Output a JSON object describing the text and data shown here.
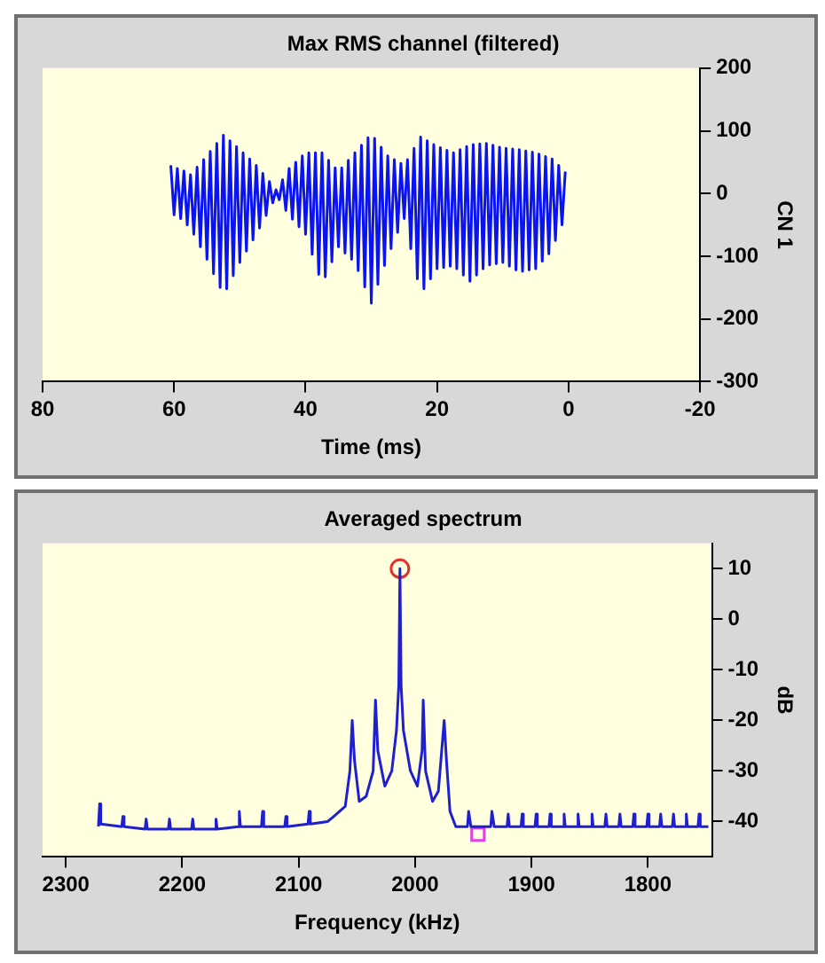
{
  "chart_data": [
    {
      "type": "line",
      "title": "Max RMS channel (filtered)",
      "xlabel": "Time (ms)",
      "ylabel": "CN 1",
      "xlim": [
        80,
        -20
      ],
      "xticks": [
        80,
        60,
        40,
        20,
        0,
        -20
      ],
      "ylim": [
        -300,
        200
      ],
      "yticks": [
        200,
        100,
        0,
        -100,
        -200,
        -300
      ],
      "grid": false,
      "legend": false,
      "marker": "none",
      "series": [
        {
          "color": "#0a14f0",
          "x": [
            60.5,
            60,
            59.5,
            59,
            58.5,
            58,
            57.5,
            57,
            56.5,
            56,
            55.5,
            55,
            54.5,
            54,
            53.5,
            53,
            52.5,
            52,
            51.5,
            51,
            50.5,
            50,
            49.5,
            49,
            48.5,
            48,
            47.5,
            47,
            46.5,
            46,
            45.5,
            45,
            44.5,
            44,
            43.5,
            43,
            42.5,
            42,
            41.5,
            41,
            40.5,
            40,
            39.5,
            39,
            38.5,
            38,
            37.5,
            37,
            36.5,
            36,
            35.5,
            35,
            34.5,
            34,
            33.5,
            33,
            32.5,
            32,
            31.5,
            31,
            30.5,
            30,
            29.5,
            29,
            28.5,
            28,
            27.5,
            27,
            26.5,
            26,
            25.5,
            25,
            24.5,
            24,
            23.5,
            23,
            22.5,
            22,
            21.5,
            21,
            20.5,
            20,
            19.5,
            19,
            18.5,
            18,
            17.5,
            17,
            16.5,
            16,
            15.5,
            15,
            14.5,
            14,
            13.5,
            13,
            12.5,
            12,
            11.5,
            11,
            10.5,
            10,
            9.5,
            9,
            8.5,
            8,
            7.5,
            7,
            6.5,
            6,
            5.5,
            5,
            4.5,
            4,
            3.5,
            3,
            2.5,
            2,
            1.5,
            1,
            0.5
          ],
          "values": [
            45,
            -34,
            40,
            -40,
            36,
            -50,
            30,
            -65,
            42,
            -85,
            54,
            -105,
            67,
            -128,
            80,
            -150,
            93,
            -152,
            84,
            -131,
            75,
            -110,
            65,
            -92,
            55,
            -74,
            45,
            -55,
            32,
            -35,
            19,
            -15,
            6,
            -10,
            22,
            -27,
            40,
            -41,
            50,
            -53,
            60,
            -65,
            65,
            -97,
            65,
            -129,
            65,
            -133,
            53,
            -109,
            41,
            -85,
            41,
            -95,
            53,
            -105,
            65,
            -123,
            77,
            -149,
            89,
            -175,
            88,
            -145,
            74,
            -115,
            60,
            -88,
            54,
            -62,
            48,
            -40,
            54,
            -88,
            72,
            -136,
            90,
            -152,
            84,
            -136,
            78,
            -120,
            73,
            -118,
            69,
            -116,
            65,
            -120,
            70,
            -130,
            75,
            -140,
            78,
            -130,
            79,
            -120,
            80,
            -114,
            77,
            -112,
            74,
            -110,
            72,
            -116,
            71,
            -122,
            70,
            -124,
            68,
            -122,
            66,
            -120,
            63,
            -108,
            59,
            -96,
            55,
            -75,
            45,
            -50,
            35
          ]
        }
      ]
    },
    {
      "type": "line",
      "title": "Averaged spectrum",
      "xlabel": "Frequency (kHz)",
      "ylabel": "dB",
      "xlim": [
        2320,
        1745
      ],
      "xticks": [
        2300,
        2200,
        2100,
        2000,
        1900,
        1800
      ],
      "ylim": [
        -47,
        15
      ],
      "yticks": [
        10,
        0,
        -10,
        -20,
        -30,
        -40
      ],
      "grid": false,
      "legend": false,
      "marker": "none",
      "series": [
        {
          "color": "#1f1fd0",
          "x": [
            2272,
            2271,
            2270,
            2252,
            2251,
            2250,
            2232,
            2231,
            2230,
            2212,
            2211,
            2210,
            2192,
            2191,
            2190,
            2172,
            2171,
            2170,
            2152,
            2151,
            2150,
            2132,
            2131,
            2130,
            2112,
            2111,
            2110,
            2092,
            2091,
            2090,
            2075,
            2070,
            2060,
            2056,
            2054,
            2052,
            2048,
            2042,
            2036,
            2034,
            2032,
            2026,
            2020,
            2016,
            2014,
            2013,
            2012,
            2010,
            2004,
            1998,
            1994,
            1993,
            1991,
            1985,
            1980,
            1975,
            1973,
            1970,
            1965,
            1955,
            1954,
            1952,
            1935,
            1934,
            1932,
            1921,
            1920,
            1919,
            1909,
            1908,
            1907,
            1897,
            1896,
            1895,
            1885,
            1884,
            1883,
            1873,
            1872,
            1871,
            1861,
            1860,
            1859,
            1849,
            1848,
            1847,
            1837,
            1836,
            1835,
            1825,
            1824,
            1823,
            1813,
            1812,
            1811,
            1801,
            1800,
            1799,
            1790,
            1789,
            1788,
            1779,
            1778,
            1777,
            1768,
            1767,
            1766,
            1757,
            1756,
            1755,
            1748
          ],
          "values": [
            -41,
            -36.5,
            -40.5,
            -41,
            -39,
            -41,
            -41.5,
            -39.5,
            -41.5,
            -41.5,
            -39.5,
            -41.5,
            -41.5,
            -39.5,
            -41.5,
            -41.5,
            -39.5,
            -41.5,
            -41,
            -38,
            -41,
            -41,
            -38,
            -41,
            -41,
            -39,
            -41,
            -40.5,
            -38,
            -40.5,
            -40,
            -39,
            -37,
            -30,
            -20,
            -28,
            -36,
            -35,
            -30,
            -16,
            -26,
            -33,
            -30,
            -22,
            -13,
            10,
            -13,
            -22,
            -30,
            -33,
            -26,
            -16,
            -30,
            -36,
            -34,
            -20,
            -28,
            -38,
            -41,
            -41,
            -38,
            -41,
            -41,
            -38,
            -41,
            -41,
            -38.5,
            -41,
            -41,
            -38.5,
            -41,
            -41,
            -38.5,
            -41,
            -41,
            -38.5,
            -41,
            -41,
            -38.5,
            -41,
            -41,
            -38.5,
            -41,
            -41,
            -38.5,
            -41,
            -41,
            -38.5,
            -41,
            -41,
            -38.5,
            -41,
            -41,
            -38.5,
            -41,
            -41,
            -38.5,
            -41,
            -41,
            -38.5,
            -41,
            -41,
            -38.5,
            -41,
            -41,
            -38.5,
            -41,
            -41,
            -38.5,
            -41,
            -41
          ]
        },
        {
          "type": "scatter",
          "color": "#e03030",
          "marker": "circle",
          "x": [
            2013
          ],
          "values": [
            10
          ]
        },
        {
          "type": "scatter",
          "color": "#e040e0",
          "marker": "square",
          "x": [
            1946
          ],
          "values": [
            -42.5
          ]
        }
      ]
    }
  ]
}
